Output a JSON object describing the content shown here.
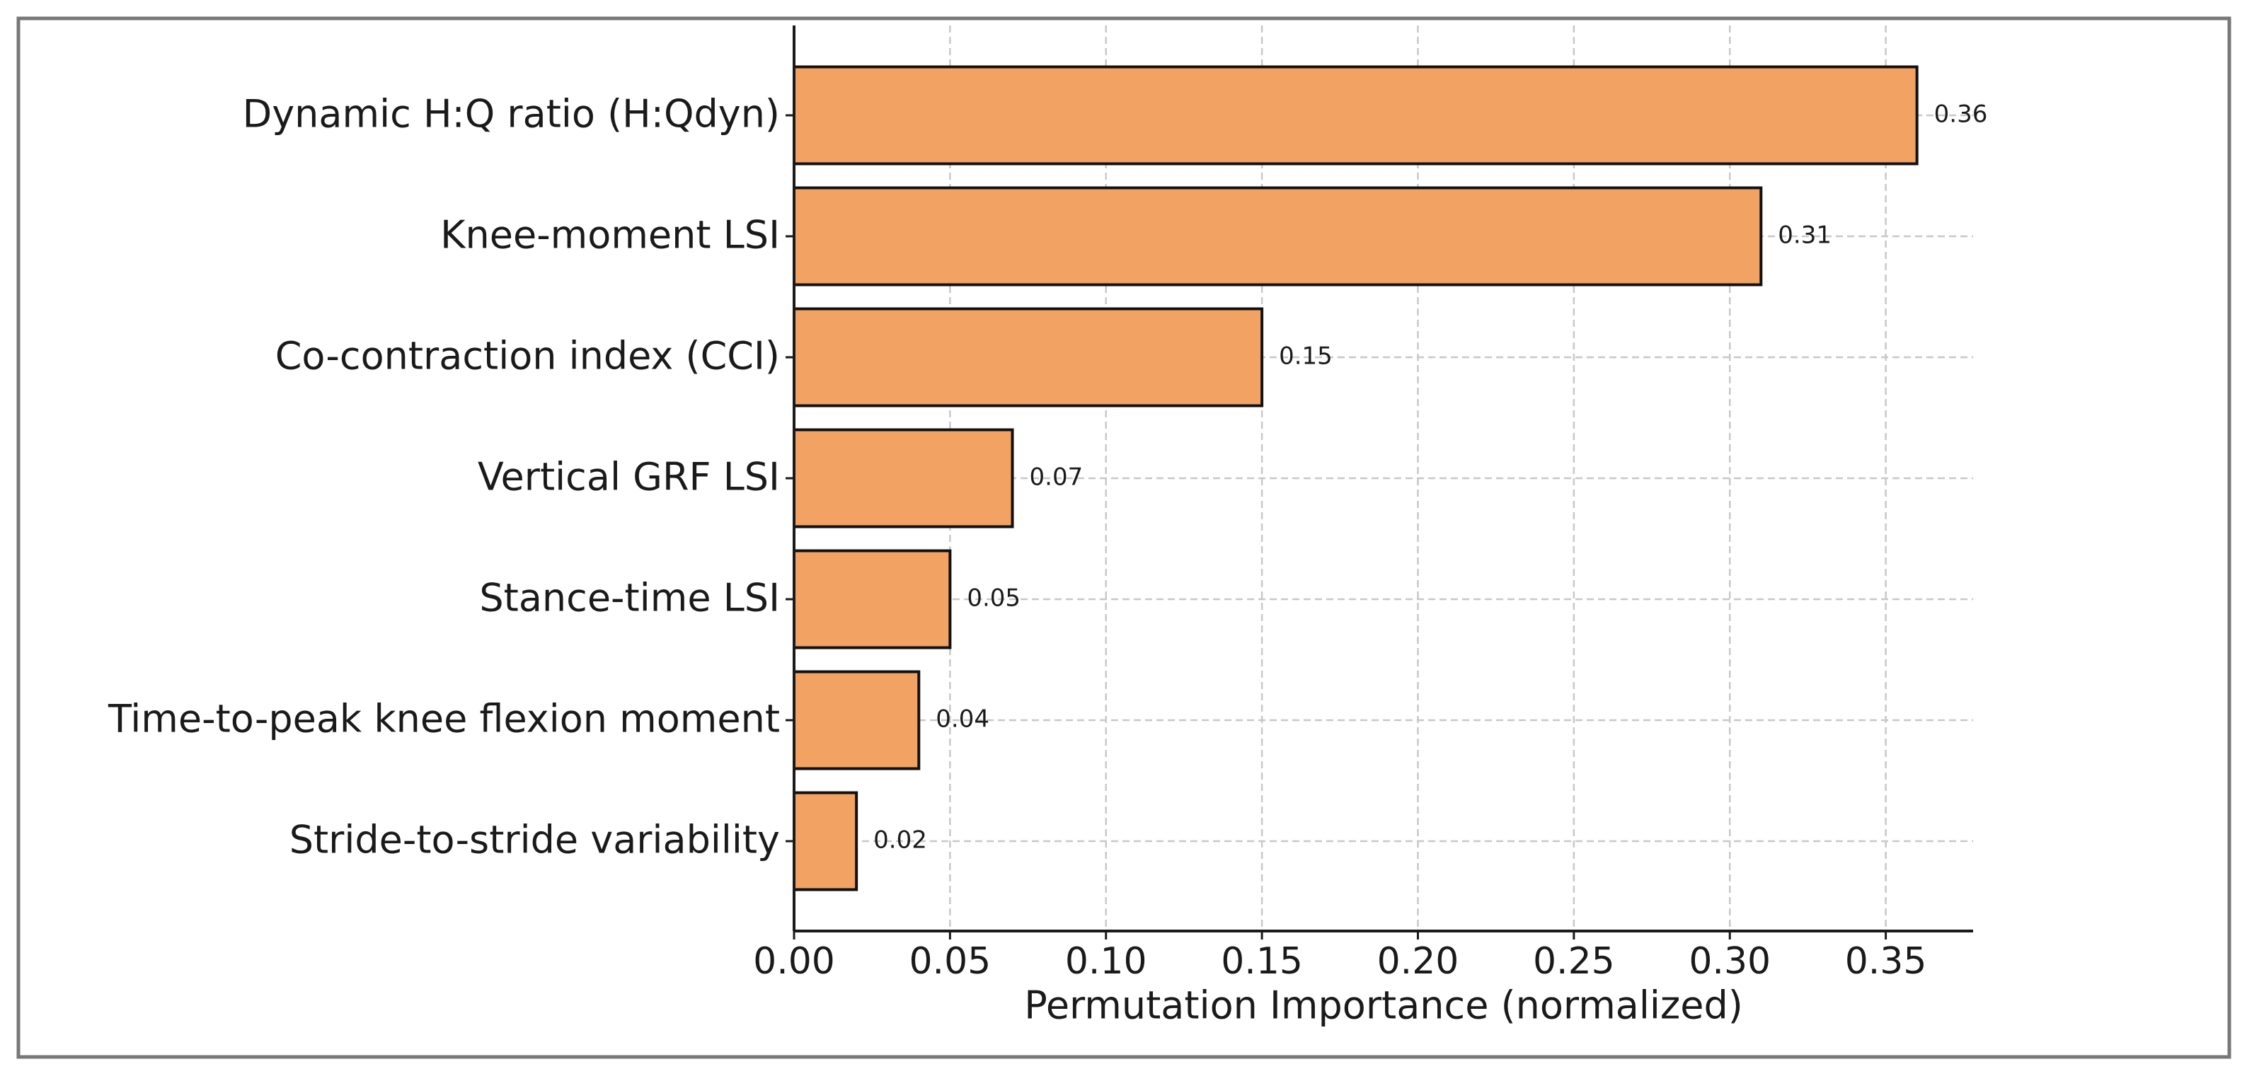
{
  "chart_data": {
    "type": "barh",
    "categories": [
      "Dynamic H:Q ratio (H:Qdyn)",
      "Knee-moment LSI",
      "Co-contraction index (CCI)",
      "Vertical GRF LSI",
      "Stance-time LSI",
      "Time-to-peak knee flexion moment",
      "Stride-to-stride variability"
    ],
    "values": [
      0.36,
      0.31,
      0.15,
      0.07,
      0.05,
      0.04,
      0.02
    ],
    "color": "#f2a262",
    "xlabel": "Permutation Importance (normalized)",
    "xlim": [
      0,
      0.378
    ],
    "xticks": [
      {
        "value": 0,
        "label": "0.00"
      },
      0.05,
      {
        "value": 0.1,
        "label": "0.10"
      },
      0.15,
      {
        "value": 0.2,
        "label": "0.20"
      },
      0.25,
      {
        "value": 0.3,
        "label": "0.30"
      },
      0.35
    ],
    "grid": true
  }
}
